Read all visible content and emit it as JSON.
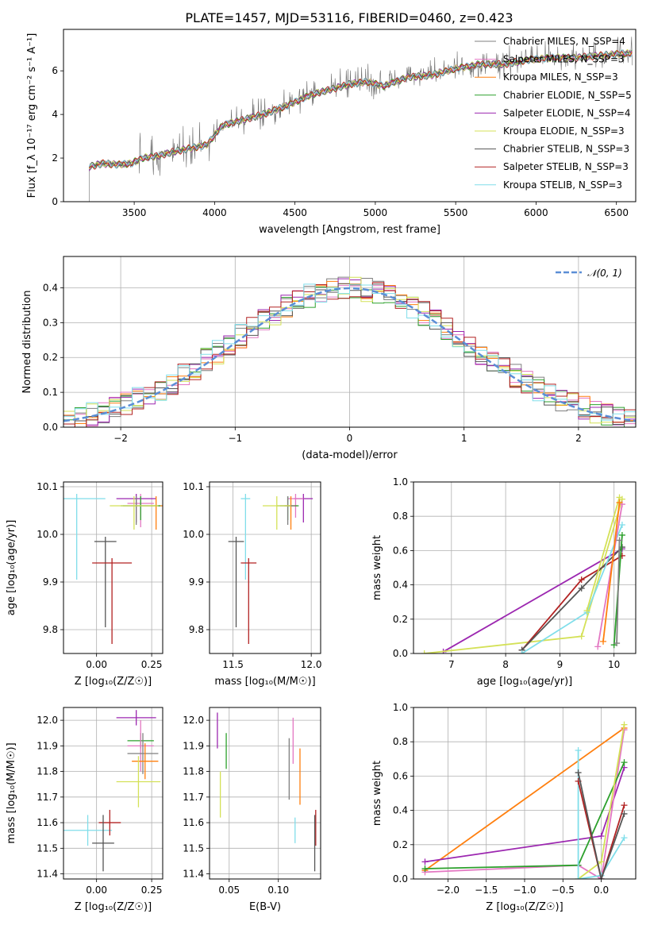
{
  "figure": {
    "title": "PLATE=1457, MJD=53116, FIBERID=0460, z=0.423"
  },
  "colors": {
    "CM": "#7f7f7f",
    "SM": "#e377c2",
    "KM": "#ff7f0e",
    "CE": "#2ca02c",
    "SE": "#9c27b0",
    "KE": "#d4e157",
    "CS": "#555555",
    "SS": "#b22222",
    "KS": "#80deea"
  },
  "chart_data": [
    {
      "type": "line",
      "title": "PLATE=1457, MJD=53116, FIBERID=0460, z=0.423",
      "xlabel": "wavelength [Angstrom, rest frame]",
      "ylabel": "Flux [f_λ 10⁻¹⁷ erg cm⁻² s⁻¹ A⁻¹]",
      "xlim": [
        3060,
        6620
      ],
      "ylim": [
        0,
        7.9
      ],
      "xticks": [
        3500,
        4000,
        4500,
        5000,
        5500,
        6000,
        6500
      ],
      "yticks": [
        0,
        2,
        4,
        6
      ],
      "data_series": {
        "name": "data",
        "x": [
          3220,
          3300,
          3400,
          3480,
          3550,
          3650,
          3750,
          3850,
          3950,
          4050,
          4150,
          4300,
          4450,
          4600,
          4750,
          4850,
          4950,
          5050,
          5200,
          5350,
          5500,
          5650,
          5800,
          5950,
          6100,
          6250,
          6400,
          6550
        ],
        "y": [
          1.6,
          1.75,
          1.7,
          1.75,
          2.0,
          2.1,
          2.3,
          2.45,
          2.6,
          3.5,
          3.7,
          4.0,
          4.4,
          4.9,
          5.2,
          5.4,
          5.5,
          5.3,
          5.7,
          5.8,
          6.1,
          6.3,
          6.3,
          6.5,
          6.6,
          6.6,
          6.7,
          6.8
        ]
      },
      "legend_position": "upper right",
      "legend": [
        {
          "key": "CM",
          "label": "Chabrier MILES, N_SSP=4"
        },
        {
          "key": "SM",
          "label": "Salpeter MILES, N_SSP=3"
        },
        {
          "key": "KM",
          "label": "Kroupa MILES, N_SSP=3"
        },
        {
          "key": "CE",
          "label": "Chabrier ELODIE, N_SSP=5"
        },
        {
          "key": "SE",
          "label": "Salpeter ELODIE, N_SSP=4"
        },
        {
          "key": "KE",
          "label": "Kroupa ELODIE, N_SSP=3"
        },
        {
          "key": "CS",
          "label": "Chabrier STELIB, N_SSP=3"
        },
        {
          "key": "SS",
          "label": "Salpeter STELIB, N_SSP=3"
        },
        {
          "key": "KS",
          "label": "Kroupa STELIB, N_SSP=3"
        }
      ]
    },
    {
      "type": "line",
      "xlabel": "(data-model)/error",
      "ylabel": "Normed distribution",
      "xlim": [
        -2.5,
        2.5
      ],
      "ylim": [
        0,
        0.49
      ],
      "xticks": [
        -2,
        -1,
        0,
        1,
        2
      ],
      "xticklabels": [
        "−2",
        "−1",
        "0",
        "1",
        "2"
      ],
      "yticks": [
        0.0,
        0.1,
        0.2,
        0.3,
        0.4
      ],
      "yticklabels": [
        "0.0",
        "0.1",
        "0.2",
        "0.3",
        "0.4"
      ],
      "grid": true,
      "legend_position": "upper right",
      "curve_label": "𝒩(0, 1)",
      "bin_width": 0.1,
      "bin_start": -2.5,
      "series_keys": [
        "CM",
        "SM",
        "KM",
        "CE",
        "SE",
        "KE",
        "CS",
        "SS",
        "KS"
      ],
      "note": "step histograms of normalized residuals, one per model"
    },
    {
      "type": "scatter",
      "xlabel": "Z [log₁₀(Z/Z☉)]",
      "ylabel": "age  [log₁₀(age/yr)]",
      "xlim": [
        -0.15,
        0.3
      ],
      "ylim": [
        9.75,
        10.11
      ],
      "xticks": [
        0.0,
        0.25
      ],
      "xticklabels": [
        "0.00",
        "0.25"
      ],
      "yticks": [
        9.8,
        9.9,
        10.0,
        10.1
      ],
      "yticklabels": [
        "9.8",
        "9.9",
        "10.0",
        "10.1"
      ],
      "grid": true,
      "points": [
        {
          "key": "SE",
          "x": 0.18,
          "xerr": 0.09,
          "y": 10.075,
          "yerr_lo": 0.05,
          "yerr_hi": 0.01
        },
        {
          "key": "SM",
          "x": 0.2,
          "xerr": 0.06,
          "y": 10.065,
          "yerr_lo": 0.05,
          "yerr_hi": 0.02
        },
        {
          "key": "KM",
          "x": 0.27,
          "xerr": 0.03,
          "y": 10.06,
          "yerr_lo": 0.05,
          "yerr_hi": 0.02
        },
        {
          "key": "CE",
          "x": 0.2,
          "xerr": 0.09,
          "y": 10.06,
          "yerr_lo": 0.03,
          "yerr_hi": 0.02
        },
        {
          "key": "CM",
          "x": 0.18,
          "xerr": 0.06,
          "y": 10.06,
          "yerr_lo": 0.04,
          "yerr_hi": 0.02
        },
        {
          "key": "KE",
          "x": 0.17,
          "xerr": 0.11,
          "y": 10.06,
          "yerr_lo": 0.05,
          "yerr_hi": 0.02
        },
        {
          "key": "KS",
          "x": -0.09,
          "xerr": 0.13,
          "y": 10.075,
          "yerr_lo": 0.17,
          "yerr_hi": 0.01
        },
        {
          "key": "CS",
          "x": 0.04,
          "xerr": 0.05,
          "y": 9.985,
          "yerr_lo": 0.18,
          "yerr_hi": 0.01
        },
        {
          "key": "SS",
          "x": 0.07,
          "xerr": 0.09,
          "y": 9.94,
          "yerr_lo": 0.17,
          "yerr_hi": 0.01
        }
      ]
    },
    {
      "type": "scatter",
      "xlabel": "mass [log₁₀(M/M☉)]",
      "ylabel": "",
      "xlim": [
        11.35,
        12.06
      ],
      "ylim": [
        9.75,
        10.11
      ],
      "xticks": [
        11.5,
        12.0
      ],
      "xticklabels": [
        "11.5",
        "12.0"
      ],
      "yticks": [
        9.8,
        9.9,
        10.0,
        10.1
      ],
      "yticklabels": [
        "9.8",
        "9.9",
        "10.0",
        "10.1"
      ],
      "grid": true,
      "points": [
        {
          "key": "SE",
          "x": 11.95,
          "xerr": 0.06,
          "y": 10.075,
          "yerr_lo": 0.05,
          "yerr_hi": 0.01
        },
        {
          "key": "SM",
          "x": 11.9,
          "xerr": 0.05,
          "y": 10.075,
          "yerr_lo": 0.04,
          "yerr_hi": 0.01
        },
        {
          "key": "KM",
          "x": 11.87,
          "xerr": 0.04,
          "y": 10.06,
          "yerr_lo": 0.05,
          "yerr_hi": 0.02
        },
        {
          "key": "CE",
          "x": 11.85,
          "xerr": 0.07,
          "y": 10.06,
          "yerr_lo": 0.03,
          "yerr_hi": 0.02
        },
        {
          "key": "CM",
          "x": 11.85,
          "xerr": 0.05,
          "y": 10.06,
          "yerr_lo": 0.04,
          "yerr_hi": 0.02
        },
        {
          "key": "KE",
          "x": 11.78,
          "xerr": 0.09,
          "y": 10.06,
          "yerr_lo": 0.05,
          "yerr_hi": 0.02
        },
        {
          "key": "KS",
          "x": 11.58,
          "xerr": 0.03,
          "y": 10.075,
          "yerr_lo": 0.17,
          "yerr_hi": 0.01
        },
        {
          "key": "CS",
          "x": 11.52,
          "xerr": 0.05,
          "y": 9.985,
          "yerr_lo": 0.18,
          "yerr_hi": 0.01
        },
        {
          "key": "SS",
          "x": 11.6,
          "xerr": 0.05,
          "y": 9.94,
          "yerr_lo": 0.17,
          "yerr_hi": 0.01
        }
      ]
    },
    {
      "type": "line",
      "xlabel": "age  [log₁₀(age/yr)]",
      "ylabel": "mass weight",
      "xlim": [
        6.3,
        10.4
      ],
      "ylim": [
        0,
        1.0
      ],
      "xticks": [
        7,
        8,
        9,
        10
      ],
      "xticklabels": [
        "7",
        "8",
        "9",
        "10"
      ],
      "yticks": [
        0,
        0.2,
        0.4,
        0.6,
        0.8,
        1.0
      ],
      "yticklabels": [
        "0.0",
        "0.2",
        "0.4",
        "0.6",
        "0.8",
        "1.0"
      ],
      "grid": true,
      "series": [
        {
          "key": "SE",
          "x": [
            6.85,
            10.15
          ],
          "y": [
            0.01,
            0.61
          ]
        },
        {
          "key": "KE",
          "x": [
            6.5,
            9.4,
            10.15
          ],
          "y": [
            0.0,
            0.1,
            0.9
          ]
        },
        {
          "key": "SS",
          "x": [
            8.3,
            9.4,
            10.15
          ],
          "y": [
            0.02,
            0.43,
            0.57
          ]
        },
        {
          "key": "CS",
          "x": [
            8.3,
            9.4,
            10.15
          ],
          "y": [
            0.02,
            0.38,
            0.62
          ]
        },
        {
          "key": "KS",
          "x": [
            8.3,
            9.5,
            10.15
          ],
          "y": [
            0.0,
            0.24,
            0.75
          ]
        },
        {
          "key": "KE2",
          "color_key": "KE",
          "x": [
            9.5,
            10.1
          ],
          "y": [
            0.25,
            0.91
          ]
        },
        {
          "key": "SM",
          "x": [
            9.7,
            10.15
          ],
          "y": [
            0.04,
            0.87
          ]
        },
        {
          "key": "KM",
          "x": [
            9.8,
            10.1
          ],
          "y": [
            0.07,
            0.88
          ]
        },
        {
          "key": "CE",
          "x": [
            10.0,
            10.15
          ],
          "y": [
            0.05,
            0.69
          ]
        },
        {
          "key": "CM",
          "x": [
            10.05,
            10.1
          ],
          "y": [
            0.06,
            0.66
          ]
        }
      ]
    },
    {
      "type": "scatter",
      "xlabel": "Z [log₁₀(Z/Z☉)]",
      "ylabel": "mass [log₁₀(M/M☉)]",
      "xlim": [
        -0.15,
        0.3
      ],
      "ylim": [
        11.38,
        12.05
      ],
      "xticks": [
        0.0,
        0.25
      ],
      "xticklabels": [
        "0.00",
        "0.25"
      ],
      "yticks": [
        11.4,
        11.5,
        11.6,
        11.7,
        11.8,
        11.9,
        12.0
      ],
      "yticklabels": [
        "11.4",
        "11.5",
        "11.6",
        "11.7",
        "11.8",
        "11.9",
        "12.0"
      ],
      "grid": true,
      "points": [
        {
          "key": "SE",
          "x": 0.18,
          "xerr": 0.09,
          "y": 12.01,
          "yerr": 0.03
        },
        {
          "key": "CE",
          "x": 0.2,
          "xerr": 0.06,
          "y": 11.92,
          "yerr": 0.03
        },
        {
          "key": "SM",
          "x": 0.2,
          "xerr": 0.06,
          "y": 11.9,
          "yerr": 0.1
        },
        {
          "key": "CM",
          "x": 0.21,
          "xerr": 0.07,
          "y": 11.87,
          "yerr": 0.08
        },
        {
          "key": "KM",
          "x": 0.22,
          "xerr": 0.06,
          "y": 11.84,
          "yerr": 0.07
        },
        {
          "key": "KE",
          "x": 0.19,
          "xerr": 0.1,
          "y": 11.76,
          "yerr": 0.1
        },
        {
          "key": "KS",
          "x": -0.04,
          "xerr": 0.11,
          "y": 11.57,
          "yerr": 0.06
        },
        {
          "key": "SS",
          "x": 0.06,
          "xerr": 0.05,
          "y": 11.6,
          "yerr": 0.05
        },
        {
          "key": "CS",
          "x": 0.03,
          "xerr": 0.05,
          "y": 11.52,
          "yerr": 0.11
        }
      ]
    },
    {
      "type": "scatter",
      "xlabel": "E(B-V)",
      "ylabel": "",
      "xlim": [
        0.03,
        0.143
      ],
      "ylim": [
        11.38,
        12.05
      ],
      "xticks": [
        0.05,
        0.1
      ],
      "xticklabels": [
        "0.05",
        "0.10"
      ],
      "yticks": [
        11.4,
        11.5,
        11.6,
        11.7,
        11.8,
        11.9,
        12.0
      ],
      "yticklabels": [
        "11.4",
        "11.5",
        "11.6",
        "11.7",
        "11.8",
        "11.9",
        "12.0"
      ],
      "grid": true,
      "points": [
        {
          "key": "SE",
          "x": 0.038,
          "y": 11.96,
          "yerr": 0.07
        },
        {
          "key": "CE",
          "x": 0.047,
          "y": 11.88,
          "yerr": 0.07
        },
        {
          "key": "KE",
          "x": 0.041,
          "y": 11.71,
          "yerr": 0.09
        },
        {
          "key": "SM",
          "x": 0.115,
          "y": 11.92,
          "yerr": 0.09
        },
        {
          "key": "CM",
          "x": 0.111,
          "y": 11.81,
          "yerr": 0.12
        },
        {
          "key": "KM",
          "x": 0.122,
          "y": 11.78,
          "yerr": 0.11
        },
        {
          "key": "KS",
          "x": 0.117,
          "y": 11.57,
          "yerr": 0.05
        },
        {
          "key": "SS",
          "x": 0.138,
          "y": 11.58,
          "yerr": 0.07
        },
        {
          "key": "CS",
          "x": 0.137,
          "y": 11.52,
          "yerr": 0.11
        }
      ]
    },
    {
      "type": "line",
      "xlabel": "Z [log₁₀(Z/Z☉)]",
      "ylabel": "mass weight",
      "xlim": [
        -2.45,
        0.45
      ],
      "ylim": [
        0,
        1.0
      ],
      "xticks": [
        -2.0,
        -1.5,
        -1.0,
        -0.5,
        0.0
      ],
      "xticklabels": [
        "−2.0",
        "−1.5",
        "−1.0",
        "−0.5",
        "0.0"
      ],
      "yticks": [
        0,
        0.2,
        0.4,
        0.6,
        0.8,
        1.0
      ],
      "yticklabels": [
        "0.0",
        "0.2",
        "0.4",
        "0.6",
        "0.8",
        "1.0"
      ],
      "grid": true,
      "series": [
        {
          "key": "KM",
          "x": [
            -2.3,
            0.3
          ],
          "y": [
            0.05,
            0.88
          ]
        },
        {
          "key": "SE",
          "x": [
            -2.3,
            0.0,
            0.3
          ],
          "y": [
            0.1,
            0.25,
            0.65
          ]
        },
        {
          "key": "SM",
          "x": [
            -2.3,
            -0.3,
            0.0,
            0.3
          ],
          "y": [
            0.04,
            0.08,
            0.0,
            0.87
          ]
        },
        {
          "key": "CE",
          "x": [
            -2.3,
            -0.3,
            0.3
          ],
          "y": [
            0.06,
            0.08,
            0.68
          ]
        },
        {
          "key": "KE",
          "x": [
            -0.3,
            0.0,
            0.3
          ],
          "y": [
            0.0,
            0.1,
            0.9
          ]
        },
        {
          "key": "KS",
          "x": [
            -0.3,
            -0.3,
            0.0,
            0.3
          ],
          "y": [
            0.75,
            0.0,
            0.02,
            0.24
          ]
        },
        {
          "key": "SS",
          "x": [
            -0.3,
            0.0,
            0.3
          ],
          "y": [
            0.57,
            0.0,
            0.43
          ]
        },
        {
          "key": "CS",
          "x": [
            -0.3,
            0.0,
            0.3
          ],
          "y": [
            0.62,
            0.0,
            0.38
          ]
        }
      ]
    }
  ]
}
